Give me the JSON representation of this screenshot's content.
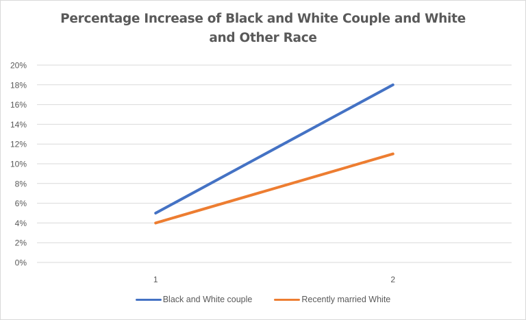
{
  "chart_data": {
    "type": "line",
    "title": "Percentage Increase of Black and White Couple and White and Other Race",
    "title_lines": [
      "Percentage Increase of Black and White Couple and White",
      "and Other Race"
    ],
    "xlabel": "",
    "ylabel": "",
    "categories": [
      "1",
      "2"
    ],
    "series": [
      {
        "name": "Black and White couple",
        "color": "#4472c4",
        "values": [
          0.05,
          0.18
        ]
      },
      {
        "name": "Recently married White",
        "color": "#ed7d31",
        "values": [
          0.04,
          0.11
        ]
      }
    ],
    "ylim": [
      0,
      0.2
    ],
    "yticks": [
      "0%",
      "2%",
      "4%",
      "6%",
      "8%",
      "10%",
      "12%",
      "14%",
      "16%",
      "18%",
      "20%"
    ],
    "grid": true,
    "legend_position": "bottom"
  },
  "colors": {
    "gridline": "#d9d9d9",
    "text": "#595959"
  }
}
